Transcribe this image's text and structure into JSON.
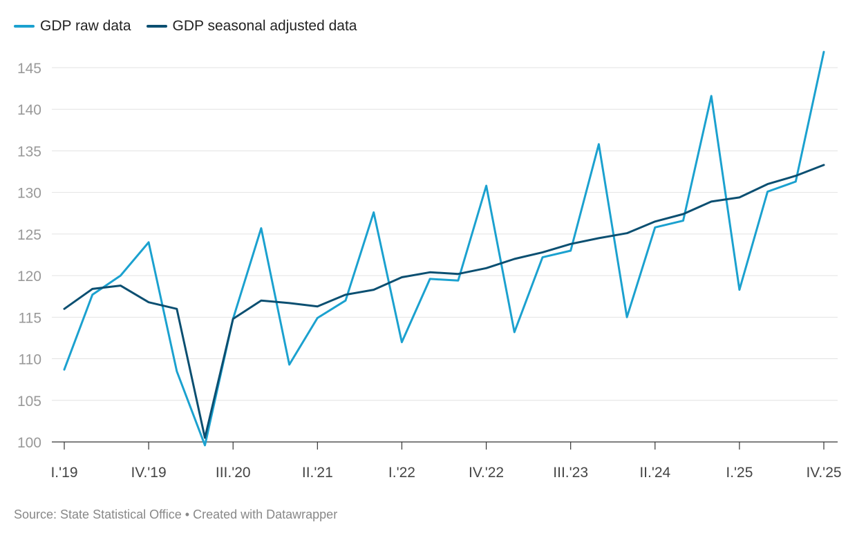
{
  "chart_data": {
    "type": "line",
    "title": "",
    "xlabel": "",
    "ylabel": "",
    "ylim": [
      100,
      145
    ],
    "yticks": [
      100,
      105,
      110,
      115,
      120,
      125,
      130,
      135,
      140,
      145
    ],
    "grid": true,
    "legend_placement": "top-left",
    "x": [
      "I.'19",
      "II.'19",
      "III.'19",
      "IV.'19",
      "I.'20",
      "II.'20",
      "III.'20",
      "IV.'20",
      "I.'21",
      "II.'21",
      "III.'21",
      "IV.'21",
      "I.'22",
      "II.'22",
      "III.'22",
      "IV.'22",
      "I.'23",
      "II.'23",
      "III.'23",
      "IV.'23",
      "I.'24",
      "II.'24",
      "III.'24",
      "IV.'24",
      "I.'25",
      "II.'25",
      "III.'25",
      "IV.'25"
    ],
    "xtick_labels": [
      "I.'19",
      "IV.'19",
      "III.'20",
      "II.'21",
      "I.'22",
      "IV.'22",
      "III.'23",
      "II.'24",
      "I.'25",
      "IV.'25"
    ],
    "series": [
      {
        "name": "GDP raw data",
        "color": "#1ba1cf",
        "values": [
          108.7,
          117.7,
          120.0,
          124.0,
          108.5,
          99.6,
          114.8,
          125.7,
          109.3,
          114.9,
          117.0,
          127.6,
          112.0,
          119.6,
          119.4,
          130.8,
          113.2,
          122.2,
          123.0,
          135.8,
          115.0,
          125.8,
          126.6,
          141.6,
          118.3,
          130.1,
          131.3,
          146.9
        ]
      },
      {
        "name": "GDP seasonal adjusted data",
        "color": "#0b4f71",
        "values": [
          116.0,
          118.4,
          118.8,
          116.8,
          116.0,
          100.5,
          114.8,
          117.0,
          116.7,
          116.3,
          117.7,
          118.3,
          119.8,
          120.4,
          120.2,
          120.9,
          122.0,
          122.8,
          123.8,
          124.5,
          125.1,
          126.5,
          127.4,
          128.9,
          129.4,
          131.0,
          132.0,
          133.3
        ]
      }
    ]
  },
  "footer": {
    "source": "Source: State Statistical Office • Created with Datawrapper"
  }
}
